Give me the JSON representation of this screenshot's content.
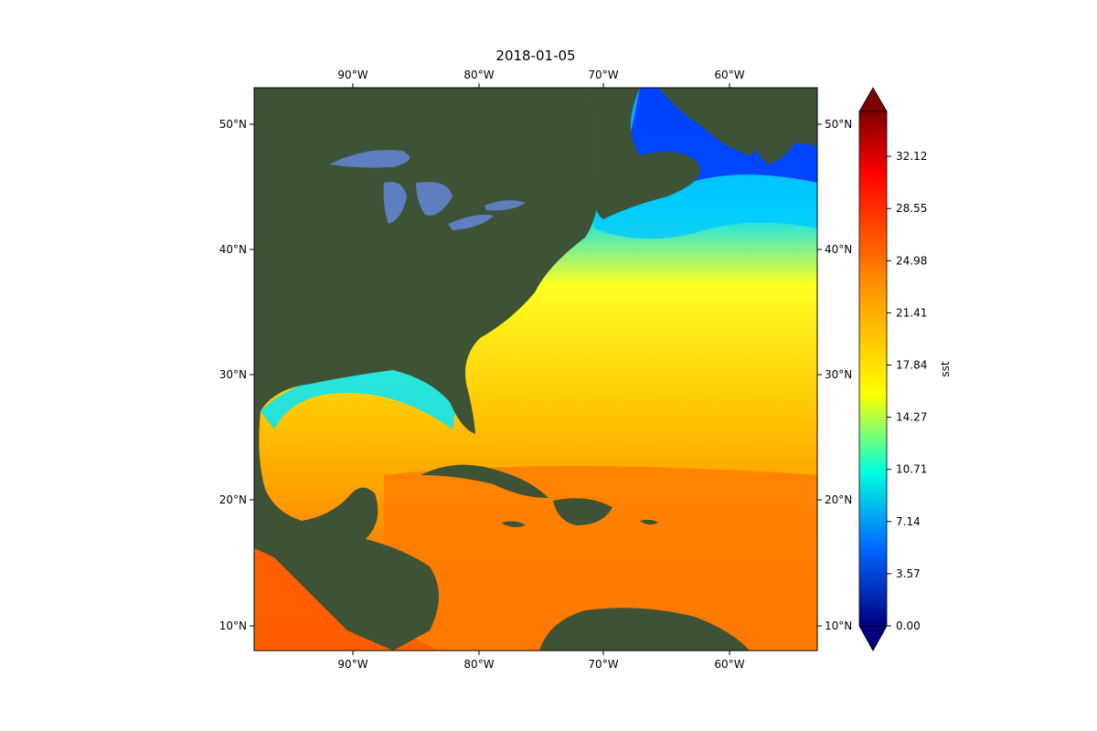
{
  "title": "2018-01-05",
  "lon_ticks": [
    "90°W",
    "80°W",
    "70°W",
    "60°W"
  ],
  "lat_ticks": [
    "50°N",
    "40°N",
    "30°N",
    "20°N",
    "10°N"
  ],
  "colorbar": {
    "label": "sst",
    "ticks": [
      "0.00",
      "3.57",
      "7.14",
      "10.71",
      "14.27",
      "17.84",
      "21.41",
      "24.98",
      "28.55",
      "32.12"
    ],
    "colors": [
      "#00007f",
      "#0000ff",
      "#007fff",
      "#00ffff",
      "#7fff7f",
      "#ffff00",
      "#ff7f00",
      "#ff0000",
      "#7f0000"
    ]
  },
  "map": {
    "lon_range": [
      -98,
      -53
    ],
    "lat_range": [
      8,
      53
    ],
    "land_color": "#3e5236",
    "lake_color": "#5e7fbf"
  }
}
